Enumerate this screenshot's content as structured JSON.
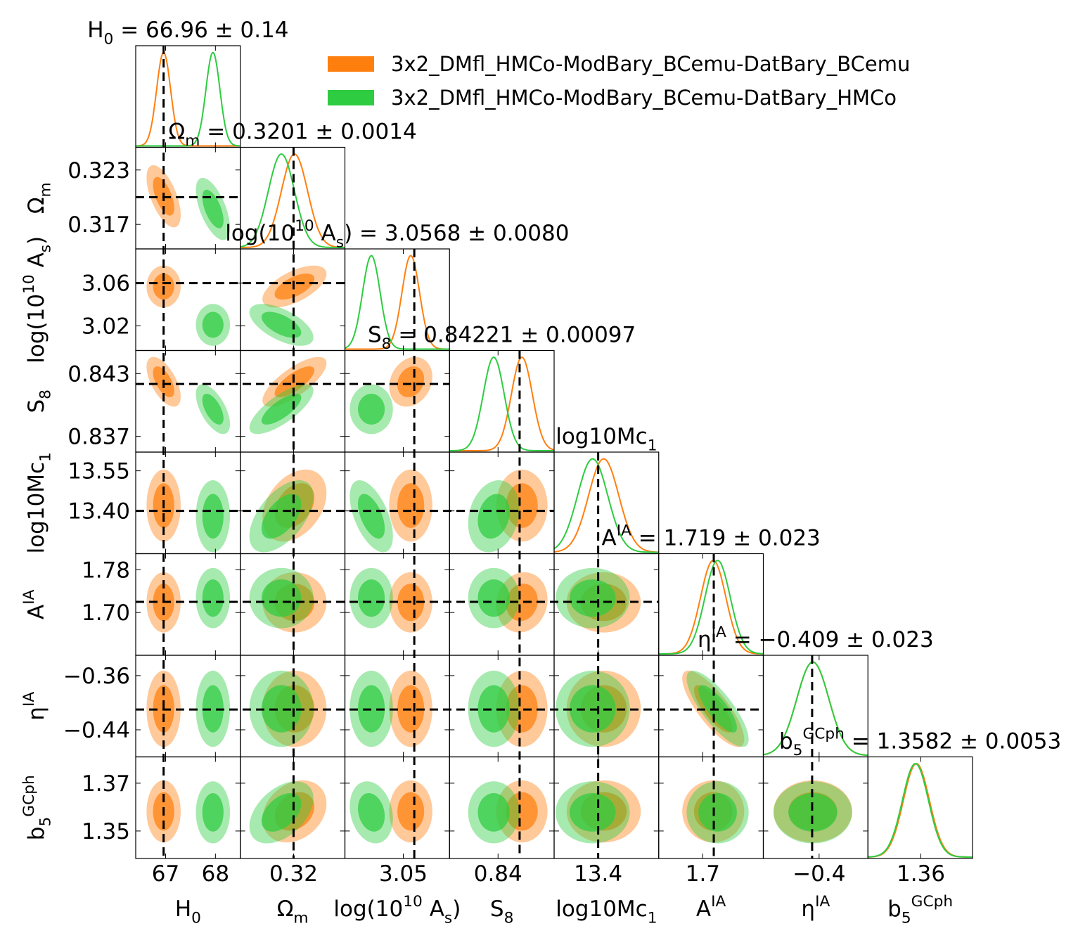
{
  "legend": [
    {
      "label": "3x2_DMfl_HMCo-ModBary_BCemu-DatBary_BCemu",
      "color": "#ff7f0e"
    },
    {
      "label": "3x2_DMfl_HMCo-ModBary_BCemu-DatBary_HMCo",
      "color": "#2ecc40"
    }
  ],
  "colors": {
    "orange": "#ff7f0e",
    "green": "#2ecc40",
    "marker": "#000000"
  },
  "chart_data": {
    "type": "corner",
    "params": [
      {
        "key": "H0",
        "label": "H_0",
        "title": "H_0 = 66.96 ± 0.14",
        "fiducial": 66.96,
        "range": [
          66.4,
          68.5
        ],
        "ticks": [
          67,
          68
        ],
        "tick_labels": [
          "67",
          "68"
        ],
        "fits": {
          "orange": [
            66.96,
            0.14
          ],
          "green": [
            67.95,
            0.14
          ]
        }
      },
      {
        "key": "Om",
        "label": "Ω_m",
        "title": "Ω_m = 0.3201 ± 0.0014",
        "fiducial": 0.32,
        "range": [
          0.3143,
          0.3255
        ],
        "ticks": [
          0.317,
          0.323
        ],
        "tick_labels": [
          "0.317",
          "0.323"
        ],
        "xticks": [
          0.32
        ],
        "xtick_labels": [
          "0.32"
        ],
        "fits": {
          "orange": [
            0.3201,
            0.0014
          ],
          "green": [
            0.3187,
            0.0014
          ]
        }
      },
      {
        "key": "As",
        "label": "log(10^10 A_s)",
        "title": "log(10^10 A_s) = 3.0568 ± 0.0080",
        "fiducial": 3.06,
        "range": [
          2.997,
          3.092
        ],
        "ticks": [
          3.02,
          3.06
        ],
        "tick_labels": [
          "3.02",
          "3.06"
        ],
        "xticks": [
          3.05
        ],
        "xtick_labels": [
          "3.05"
        ],
        "fits": {
          "orange": [
            3.0568,
            0.008
          ],
          "green": [
            3.021,
            0.008
          ]
        }
      },
      {
        "key": "S8",
        "label": "S_8",
        "title": "S_8 = 0.84221 ± 0.00097",
        "fiducial": 0.842,
        "range": [
          0.8355,
          0.8452
        ],
        "ticks": [
          0.837,
          0.843
        ],
        "tick_labels": [
          "0.837",
          "0.843"
        ],
        "xticks": [
          0.84
        ],
        "xtick_labels": [
          "0.84"
        ],
        "fits": {
          "orange": [
            0.84221,
            0.00097
          ],
          "green": [
            0.8396,
            0.00097
          ]
        }
      },
      {
        "key": "Mc",
        "label": "log10Mc_1",
        "title": "log10Mc_1",
        "fiducial": 13.4,
        "range": [
          13.24,
          13.62
        ],
        "ticks": [
          13.4,
          13.55
        ],
        "tick_labels": [
          "13.40",
          "13.55"
        ],
        "xticks": [
          13.4
        ],
        "xtick_labels": [
          "13.4"
        ],
        "fits": {
          "orange": [
            13.42,
            0.055
          ],
          "green": [
            13.38,
            0.055
          ]
        }
      },
      {
        "key": "AIA",
        "label": "A^IA",
        "title": "A^IA = 1.719 ± 0.023",
        "fiducial": 1.72,
        "range": [
          1.62,
          1.81
        ],
        "ticks": [
          1.7,
          1.78
        ],
        "tick_labels": [
          "1.70",
          "1.78"
        ],
        "xticks": [
          1.7
        ],
        "xtick_labels": [
          "1.7"
        ],
        "fits": {
          "orange": [
            1.719,
            0.023
          ],
          "green": [
            1.727,
            0.023
          ]
        }
      },
      {
        "key": "eta",
        "label": "η^IA",
        "title": "η^IA = −0.409 ± 0.023",
        "fiducial": -0.41,
        "range": [
          -0.48,
          -0.33
        ],
        "ticks": [
          -0.44,
          -0.36
        ],
        "tick_labels": [
          "−0.44",
          "−0.36"
        ],
        "xticks": [
          -0.4
        ],
        "xtick_labels": [
          "−0.4"
        ],
        "fits": {
          "orange": [
            -0.409,
            0.023
          ],
          "green": [
            -0.409,
            0.023
          ]
        }
      },
      {
        "key": "b5",
        "label": "b_5^GCph",
        "title": "b_5^GCph = 1.3582 ± 0.0053",
        "fiducial": null,
        "range": [
          1.3385,
          1.381
        ],
        "ticks": [
          1.35,
          1.37
        ],
        "tick_labels": [
          "1.35",
          "1.37"
        ],
        "xticks": [
          1.36
        ],
        "xtick_labels": [
          "1.36"
        ],
        "fits": {
          "orange": [
            1.3582,
            0.0053
          ],
          "green": [
            1.3578,
            0.0053
          ]
        }
      }
    ],
    "correlations": {
      "orange": {
        "0-1": -0.6,
        "0-3": -0.6,
        "1-2": 0.6,
        "1-3": 0.75,
        "1-4": 0.35,
        "2-3": 0.2,
        "3-5": 0.1,
        "5-6": -0.8,
        "1-7": 0.25
      },
      "green": {
        "0-1": -0.6,
        "0-3": -0.6,
        "1-2": -0.6,
        "1-3": 0.75,
        "1-4": 0.55,
        "2-4": -0.55,
        "3-4": 0.2,
        "5-6": -0.8,
        "1-7": 0.45,
        "2-7": -0.2
      }
    }
  }
}
